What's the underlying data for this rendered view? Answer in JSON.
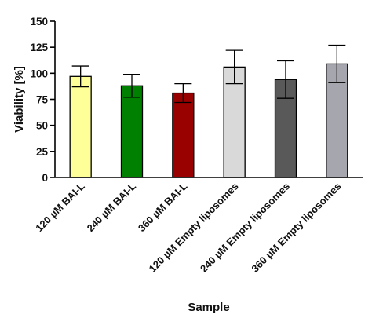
{
  "chart_data": {
    "type": "bar",
    "title": "",
    "xlabel": "Sample",
    "ylabel": "Viability [%]",
    "ylim": [
      0,
      150
    ],
    "yticks": [
      0,
      25,
      50,
      75,
      100,
      125,
      150
    ],
    "ytick_labels": [
      "0",
      "25",
      "50",
      "75",
      "100",
      "125",
      "150"
    ],
    "grid": false,
    "categories": [
      "120 µM BAI-L",
      "240 µM BAI-L",
      "360 µM BAI-L",
      "120 µM Empty liposomes",
      "240 µM Empty liposomes",
      "360 µM Empty liposomes"
    ],
    "values": [
      97,
      88,
      81,
      106,
      94,
      109
    ],
    "error": [
      10,
      11,
      9,
      16,
      18,
      18
    ],
    "bar_colors": [
      "#ffff99",
      "#008000",
      "#990000",
      "#d9d9d9",
      "#595959",
      "#a6a6ae"
    ]
  }
}
